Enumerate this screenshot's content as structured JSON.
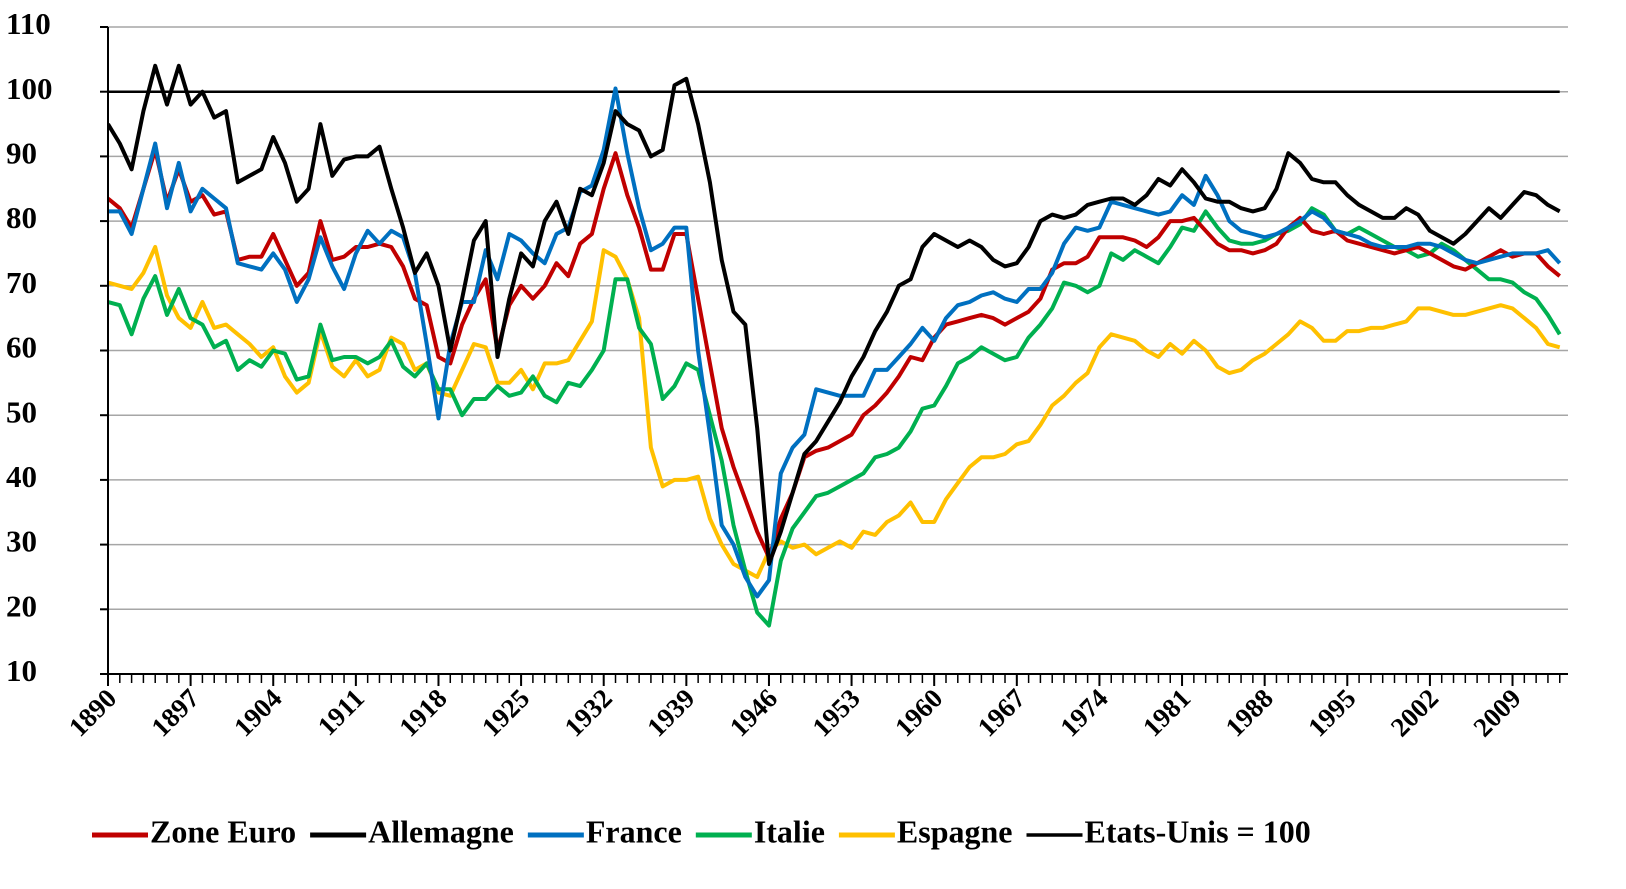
{
  "chart_data": {
    "type": "line",
    "x": [
      1890,
      1891,
      1892,
      1893,
      1894,
      1895,
      1896,
      1897,
      1898,
      1899,
      1900,
      1901,
      1902,
      1903,
      1904,
      1905,
      1906,
      1907,
      1908,
      1909,
      1910,
      1911,
      1912,
      1913,
      1914,
      1915,
      1916,
      1917,
      1918,
      1919,
      1920,
      1921,
      1922,
      1923,
      1924,
      1925,
      1926,
      1927,
      1928,
      1929,
      1930,
      1931,
      1932,
      1933,
      1934,
      1935,
      1936,
      1937,
      1938,
      1939,
      1940,
      1941,
      1942,
      1943,
      1944,
      1945,
      1946,
      1947,
      1948,
      1949,
      1950,
      1951,
      1952,
      1953,
      1954,
      1955,
      1956,
      1957,
      1958,
      1959,
      1960,
      1961,
      1962,
      1963,
      1964,
      1965,
      1966,
      1967,
      1968,
      1969,
      1970,
      1971,
      1972,
      1973,
      1974,
      1975,
      1976,
      1977,
      1978,
      1979,
      1980,
      1981,
      1982,
      1983,
      1984,
      1985,
      1986,
      1987,
      1988,
      1989,
      1990,
      1991,
      1992,
      1993,
      1994,
      1995,
      1996,
      1997,
      1998,
      1999,
      2000,
      2001,
      2002,
      2003,
      2004,
      2005,
      2006,
      2007,
      2008,
      2009,
      2010,
      2011,
      2012,
      2013
    ],
    "xlim": [
      1890,
      2013.7
    ],
    "xticks": [
      1890,
      1897,
      1904,
      1911,
      1918,
      1925,
      1932,
      1939,
      1946,
      1953,
      1960,
      1967,
      1974,
      1981,
      1988,
      1995,
      2002,
      2009
    ],
    "ylim": [
      10,
      110
    ],
    "yticks": [
      10,
      20,
      30,
      40,
      50,
      60,
      70,
      80,
      90,
      100,
      110
    ],
    "grid": true,
    "series": [
      {
        "name": "Zone Euro",
        "color": "#c00000",
        "width": 4,
        "values": [
          83.5,
          82,
          79,
          85,
          91,
          83,
          88,
          83,
          84,
          81,
          81.5,
          74,
          74.5,
          74.5,
          78,
          74,
          70,
          72,
          80,
          74,
          74.5,
          76,
          76,
          76.5,
          76,
          73,
          68,
          67,
          59,
          58,
          64,
          68,
          71,
          60,
          67,
          70,
          68,
          70,
          73.5,
          71.5,
          76.5,
          78,
          85,
          90.5,
          84,
          79,
          72.5,
          72.5,
          78,
          78,
          68,
          58,
          48,
          42,
          37,
          32,
          28,
          34,
          38,
          43.5,
          44.5,
          45,
          46,
          47,
          50,
          51.5,
          53.5,
          56,
          59,
          58.5,
          62,
          64,
          64.5,
          65,
          65.5,
          65,
          64,
          65,
          66,
          68,
          72.5,
          73.5,
          73.5,
          74.5,
          77.5,
          77.5,
          77.5,
          77,
          76,
          77.5,
          80,
          80,
          80.5,
          78.5,
          76.5,
          75.5,
          75.5,
          75,
          75.5,
          76.5,
          79,
          80.5,
          78.5,
          78,
          78.5,
          77,
          76.5,
          76,
          75.5,
          75,
          75.5,
          76,
          75,
          74,
          73,
          72.5,
          73.5,
          74.5,
          75.5,
          74.5,
          75,
          75,
          73,
          71.5
        ]
      },
      {
        "name": "Allemagne",
        "color": "#000000",
        "width": 4,
        "values": [
          95,
          92,
          88,
          97,
          104,
          98,
          104,
          98,
          100,
          96,
          97,
          86,
          87,
          88,
          93,
          89,
          83,
          85,
          95,
          87,
          89.5,
          90,
          90,
          91.5,
          85,
          79,
          72,
          75,
          70,
          60,
          68,
          77,
          80,
          59,
          68,
          75,
          73,
          80,
          83,
          78,
          85,
          84,
          89,
          97,
          95,
          94,
          90,
          91,
          101,
          102,
          95,
          86,
          74,
          66,
          64,
          48,
          27,
          32,
          38,
          44,
          46,
          49,
          52,
          56,
          59,
          63,
          66,
          70,
          71,
          76,
          78,
          77,
          76,
          77,
          76,
          74,
          73,
          73.5,
          76,
          80,
          81,
          80.5,
          81,
          82.5,
          83,
          83.5,
          83.5,
          82.5,
          84,
          86.5,
          85.5,
          88,
          86,
          83.5,
          83,
          83,
          82,
          81.5,
          82,
          85,
          90.5,
          89,
          86.5,
          86,
          86,
          84,
          82.5,
          81.5,
          80.5,
          80.5,
          82,
          81,
          78.5,
          77.5,
          76.5,
          78,
          80,
          82,
          80.5,
          82.5,
          84.5,
          84,
          82.5,
          81.5
        ]
      },
      {
        "name": "France",
        "color": "#0070c0",
        "width": 4,
        "values": [
          81.5,
          81.5,
          78,
          85,
          92,
          82,
          89,
          81.5,
          85,
          83.5,
          82,
          73.5,
          73,
          72.5,
          75,
          72.5,
          67.5,
          71,
          77.5,
          73,
          69.5,
          75,
          78.5,
          76.5,
          78.5,
          77.5,
          72,
          61,
          49.5,
          61,
          67.5,
          67.5,
          75.5,
          71,
          78,
          77,
          75,
          73.5,
          78,
          79,
          84.5,
          85.5,
          91,
          100.5,
          90.5,
          82,
          75.5,
          76.5,
          79,
          79,
          60,
          47,
          33,
          30,
          25,
          22,
          24.5,
          41,
          45,
          47,
          54,
          53.5,
          53,
          53,
          53,
          57,
          57,
          59,
          61,
          63.5,
          61.5,
          65,
          67,
          67.5,
          68.5,
          69,
          68,
          67.5,
          69.5,
          69.5,
          72,
          76.5,
          79,
          78.5,
          79,
          83,
          82.5,
          82,
          81.5,
          81,
          81.5,
          84,
          82.5,
          87,
          84,
          80,
          78.5,
          78,
          77.5,
          78,
          79,
          80,
          81.5,
          80.5,
          78.5,
          78,
          77.5,
          76.5,
          76,
          76,
          76,
          76.5,
          76.5,
          76,
          75,
          74,
          73.5,
          74,
          74.5,
          75,
          75,
          75,
          75.5,
          73.5
        ]
      },
      {
        "name": "Italie",
        "color": "#00b050",
        "width": 4,
        "values": [
          67.5,
          67,
          62.5,
          68,
          71.5,
          65.5,
          69.5,
          65,
          64,
          60.5,
          61.5,
          57,
          58.5,
          57.5,
          60,
          59.5,
          55.5,
          56,
          64,
          58.5,
          59,
          59,
          58,
          59,
          61.5,
          57.5,
          56,
          58,
          54,
          54,
          50,
          52.5,
          52.5,
          54.5,
          53,
          53.5,
          56,
          53,
          52,
          55,
          54.5,
          57,
          60,
          71,
          71,
          63.5,
          61,
          52.5,
          54.5,
          58,
          57,
          50,
          43,
          33,
          26,
          19.5,
          17.5,
          27.5,
          32.5,
          35,
          37.5,
          38,
          39,
          40,
          41,
          43.5,
          44,
          45,
          47.5,
          51,
          51.5,
          54.5,
          58,
          59,
          60.5,
          59.5,
          58.5,
          59,
          62,
          64,
          66.5,
          70.5,
          70,
          69,
          70,
          75,
          74,
          75.5,
          74.5,
          73.5,
          76,
          79,
          78.5,
          81.5,
          79,
          77,
          76.5,
          76.5,
          77,
          78,
          78.5,
          79.5,
          82,
          81,
          78.5,
          78,
          79,
          78,
          77,
          76,
          75.5,
          74.5,
          75,
          76.5,
          75.5,
          74,
          72.5,
          71,
          71,
          70.5,
          69,
          68,
          65.5,
          62.5
        ]
      },
      {
        "name": "Espagne",
        "color": "#ffc000",
        "width": 4,
        "values": [
          70.5,
          70,
          69.5,
          72,
          76,
          68.5,
          65,
          63.5,
          67.5,
          63.5,
          64,
          62.5,
          61,
          59,
          60.5,
          56,
          53.5,
          55,
          63,
          57.5,
          56,
          58.5,
          56,
          57,
          62,
          61,
          57,
          58,
          53.5,
          53,
          57,
          61,
          60.5,
          55,
          55,
          57,
          54,
          58,
          58,
          58.5,
          61.5,
          64.5,
          75.5,
          74.5,
          71,
          65,
          45,
          39,
          40,
          40,
          40.5,
          34,
          30,
          27,
          26,
          25,
          29,
          30.5,
          29.5,
          30,
          28.5,
          29.5,
          30.5,
          29.5,
          32,
          31.5,
          33.5,
          34.5,
          36.5,
          33.5,
          33.5,
          37,
          39.5,
          42,
          43.5,
          43.5,
          44,
          45.5,
          46,
          48.5,
          51.5,
          53,
          55,
          56.5,
          60.5,
          62.5,
          62,
          61.5,
          60,
          59,
          61,
          59.5,
          61.5,
          60,
          57.5,
          56.5,
          57,
          58.5,
          59.5,
          61,
          62.5,
          64.5,
          63.5,
          61.5,
          61.5,
          63,
          63,
          63.5,
          63.5,
          64,
          64.5,
          66.5,
          66.5,
          66,
          65.5,
          65.5,
          66,
          66.5,
          67,
          66.5,
          65,
          63.5,
          61,
          60.5
        ]
      },
      {
        "name": "Etats-Unis = 100",
        "color": "#000000",
        "width": 2.5,
        "values": [
          100,
          100,
          100,
          100,
          100,
          100,
          100,
          100,
          100,
          100,
          100,
          100,
          100,
          100,
          100,
          100,
          100,
          100,
          100,
          100,
          100,
          100,
          100,
          100,
          100,
          100,
          100,
          100,
          100,
          100,
          100,
          100,
          100,
          100,
          100,
          100,
          100,
          100,
          100,
          100,
          100,
          100,
          100,
          100,
          100,
          100,
          100,
          100,
          100,
          100,
          100,
          100,
          100,
          100,
          100,
          100,
          100,
          100,
          100,
          100,
          100,
          100,
          100,
          100,
          100,
          100,
          100,
          100,
          100,
          100,
          100,
          100,
          100,
          100,
          100,
          100,
          100,
          100,
          100,
          100,
          100,
          100,
          100,
          100,
          100,
          100,
          100,
          100,
          100,
          100,
          100,
          100,
          100,
          100,
          100,
          100,
          100,
          100,
          100,
          100,
          100,
          100,
          100,
          100,
          100,
          100,
          100,
          100,
          100,
          100,
          100,
          100,
          100,
          100,
          100,
          100,
          100,
          100,
          100,
          100,
          100,
          100,
          100,
          100
        ]
      }
    ]
  }
}
